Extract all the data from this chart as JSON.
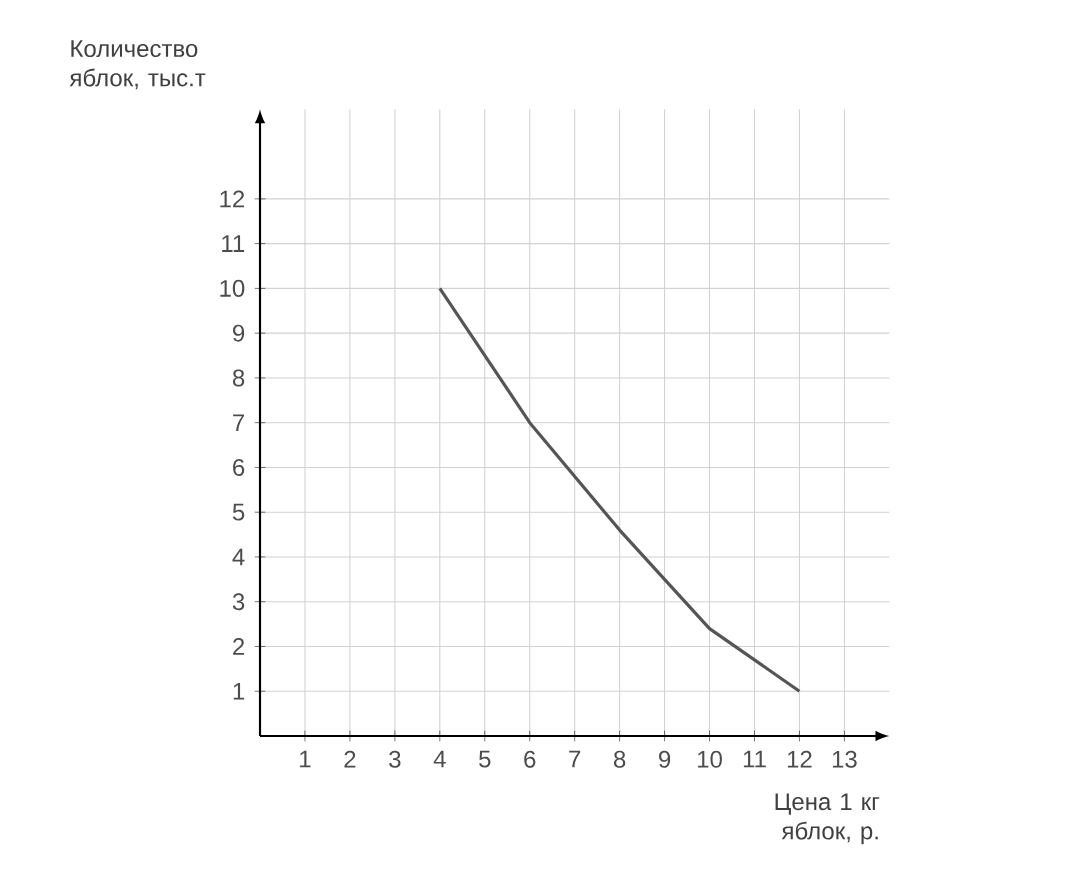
{
  "chart_data": {
    "type": "line",
    "xlabel": "Цена 1 кг яблок, р.",
    "ylabel": "Количество яблок, тыс.т",
    "x": [
      4,
      6,
      8,
      10,
      12
    ],
    "series": [
      {
        "color": "#555555",
        "values": [
          10,
          7,
          4.6,
          2.4,
          1
        ]
      }
    ],
    "xlim": [
      0,
      14
    ],
    "ylim": [
      0,
      14
    ],
    "xticks": [
      1,
      2,
      3,
      4,
      5,
      6,
      7,
      8,
      9,
      10,
      11,
      12,
      13
    ],
    "yticks": [
      1,
      2,
      3,
      4,
      5,
      6,
      7,
      8,
      9,
      10,
      11,
      12
    ],
    "grid": true,
    "marker": "none",
    "line_style": "solid"
  }
}
